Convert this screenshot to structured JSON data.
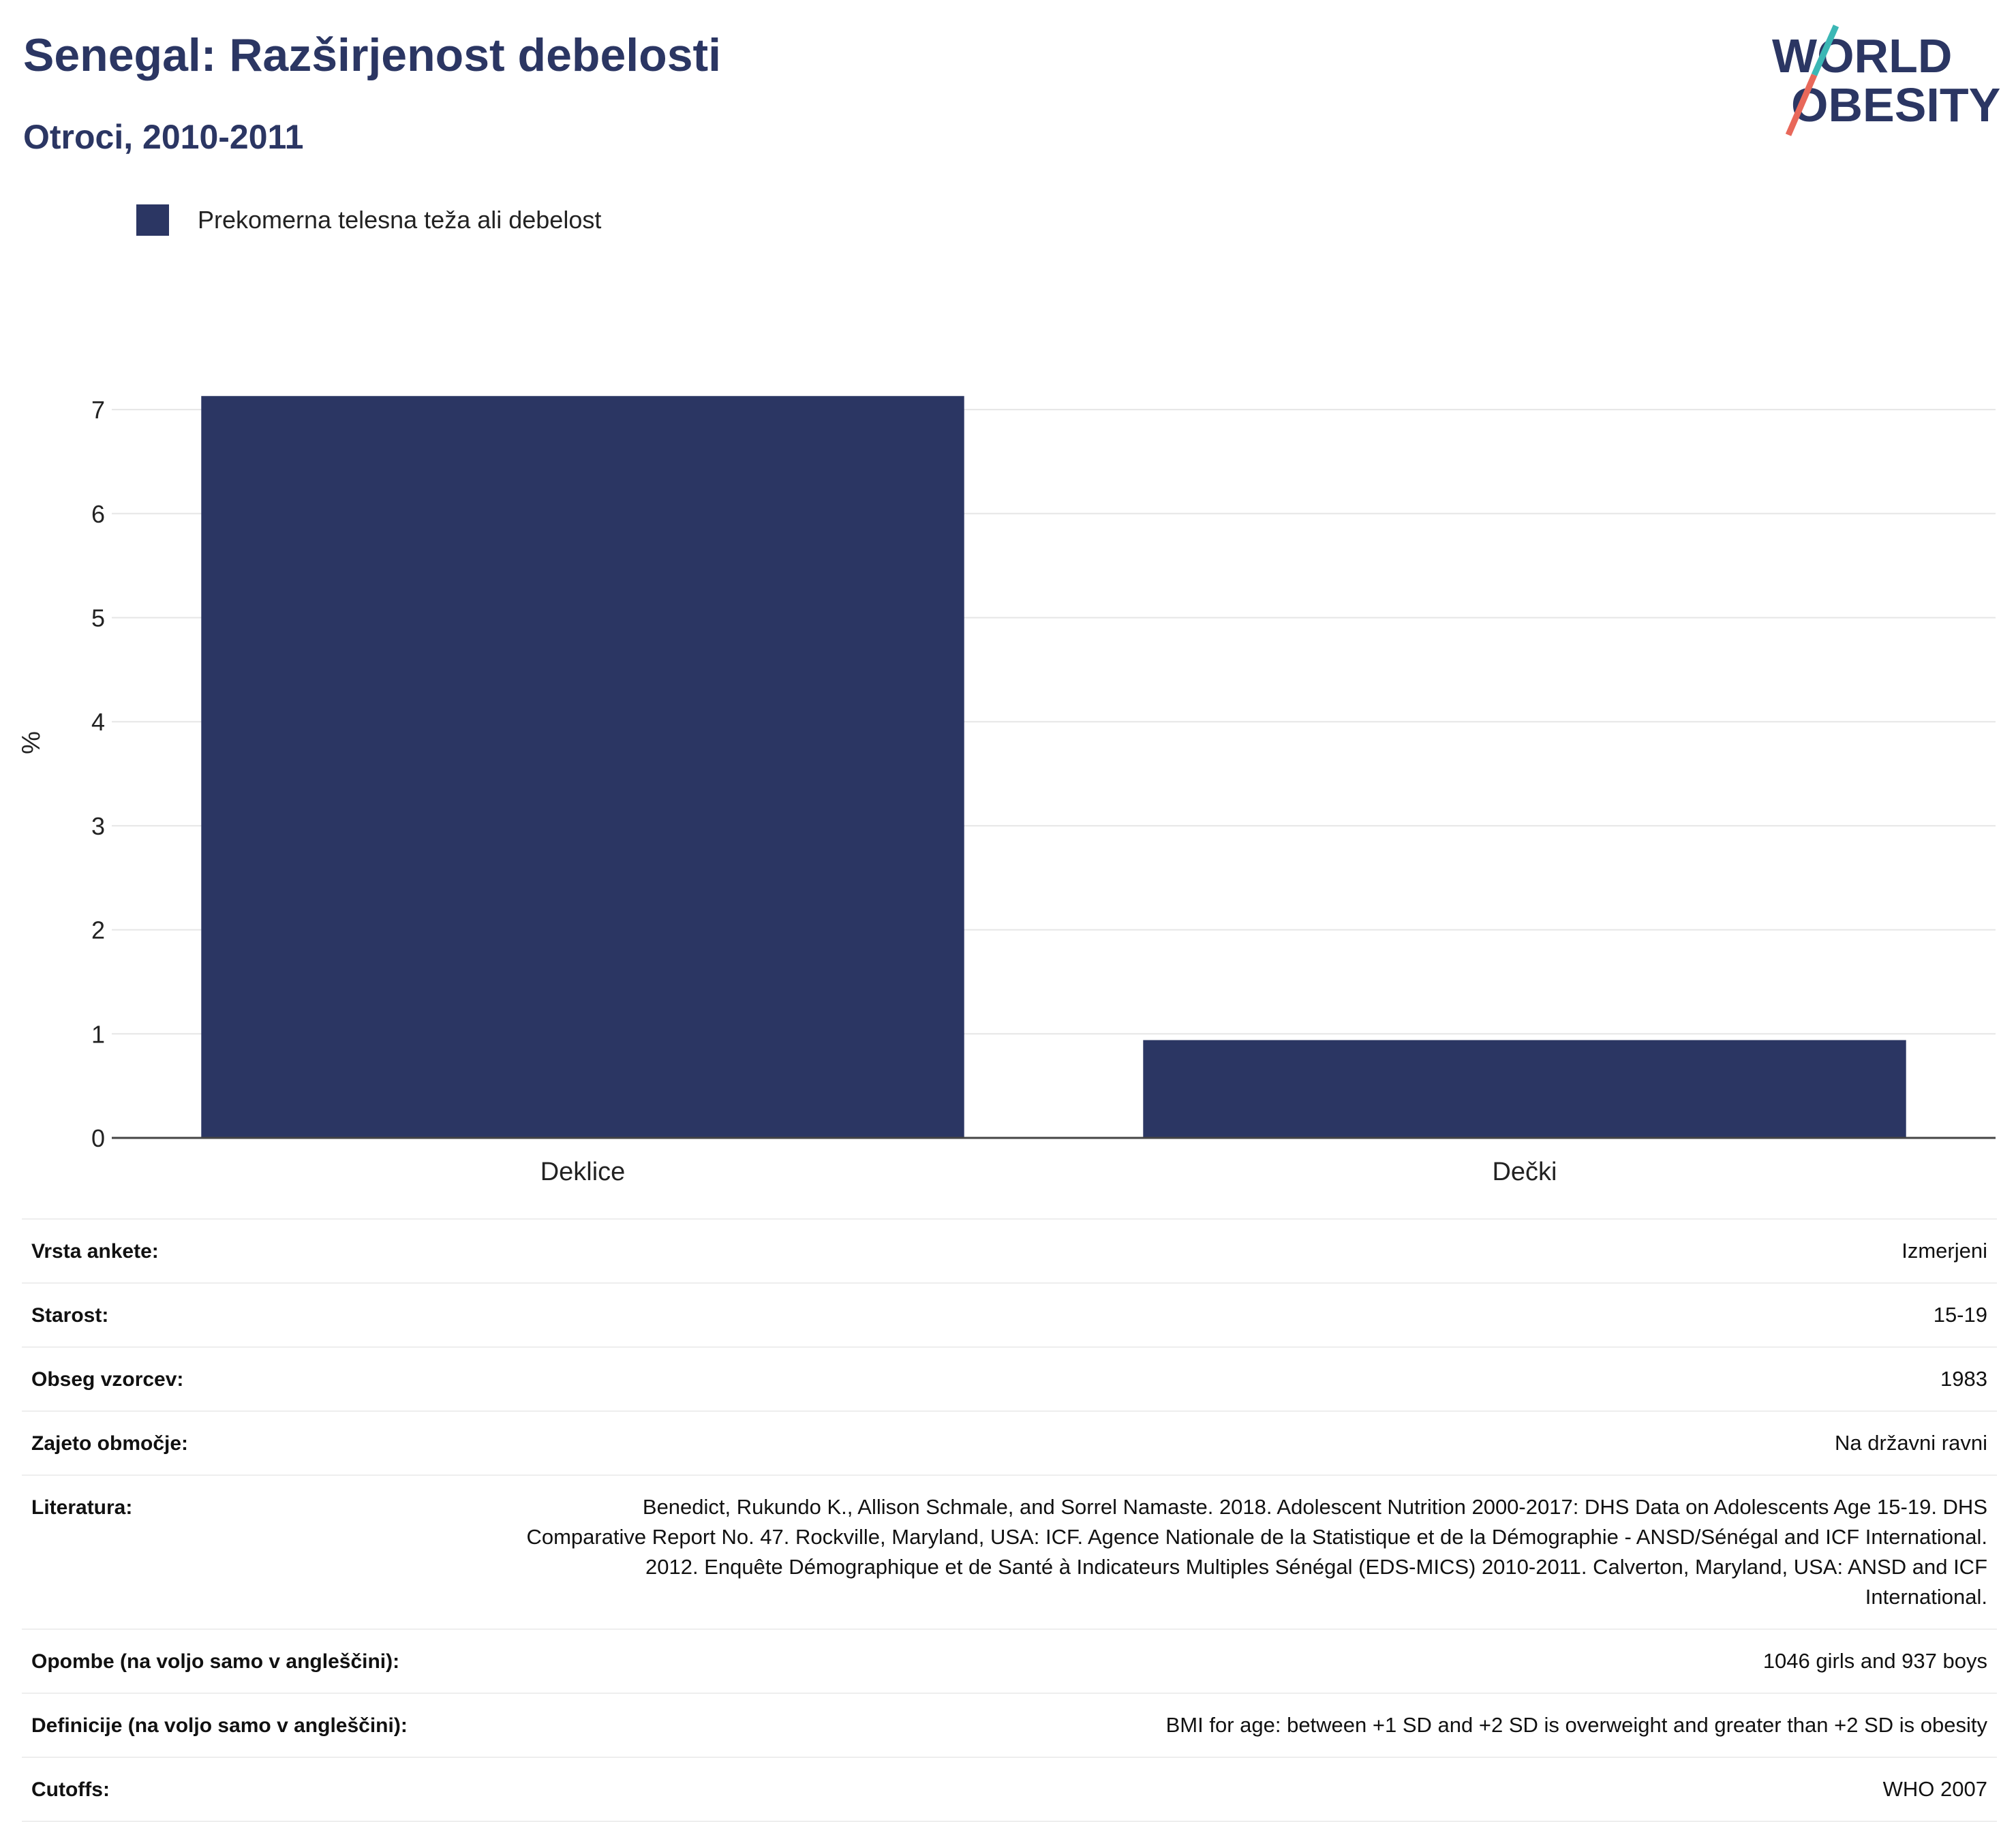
{
  "header": {
    "title": "Senegal: Razširjenost debelosti",
    "subtitle": "Otroci, 2010-2011"
  },
  "logo": {
    "line1": "WORLD",
    "line2": "OBESITY"
  },
  "colors": {
    "bar": "#2b3663",
    "title": "#2b3663",
    "grid": "#e6e6e6",
    "logo_teal": "#3bb7b5",
    "logo_coral": "#e8685a"
  },
  "chart_data": {
    "type": "bar",
    "categories": [
      "Deklice",
      "Dečki"
    ],
    "series": [
      {
        "name": "Prekomerna telesna teža ali debelost",
        "values": [
          7.13,
          0.94
        ]
      }
    ],
    "ylabel": "%",
    "xlabel": "",
    "ylim": [
      0,
      7.4
    ],
    "yticks": [
      0,
      1,
      2,
      3,
      4,
      5,
      6,
      7
    ],
    "grid": true,
    "legend": "top-left"
  },
  "meta": [
    {
      "key": "Vrsta ankete:",
      "value": "Izmerjeni"
    },
    {
      "key": "Starost:",
      "value": "15-19"
    },
    {
      "key": "Obseg vzorcev:",
      "value": "1983"
    },
    {
      "key": "Zajeto območje:",
      "value": "Na državni ravni"
    },
    {
      "key": "Literatura:",
      "value": "Benedict, Rukundo K., Allison Schmale, and Sorrel Namaste. 2018. Adolescent Nutrition 2000-2017: DHS Data on Adolescents Age 15-19. DHS Comparative Report No. 47. Rockville, Maryland, USA: ICF. Agence Nationale de la Statistique et de la Démographie - ANSD/Sénégal and ICF International. 2012. Enquête Démographique et de Santé à Indicateurs Multiples Sénégal (EDS-MICS) 2010-2011. Calverton, Maryland, USA: ANSD and ICF International."
    },
    {
      "key": "Opombe (na voljo samo v angleščini):",
      "value": "1046 girls and 937 boys"
    },
    {
      "key": "Definicije (na voljo samo v angleščini):",
      "value": "BMI for age: between +1 SD and +2 SD is overweight and greater than +2 SD is obesity"
    },
    {
      "key": "Cutoffs:",
      "value": "WHO 2007"
    }
  ]
}
